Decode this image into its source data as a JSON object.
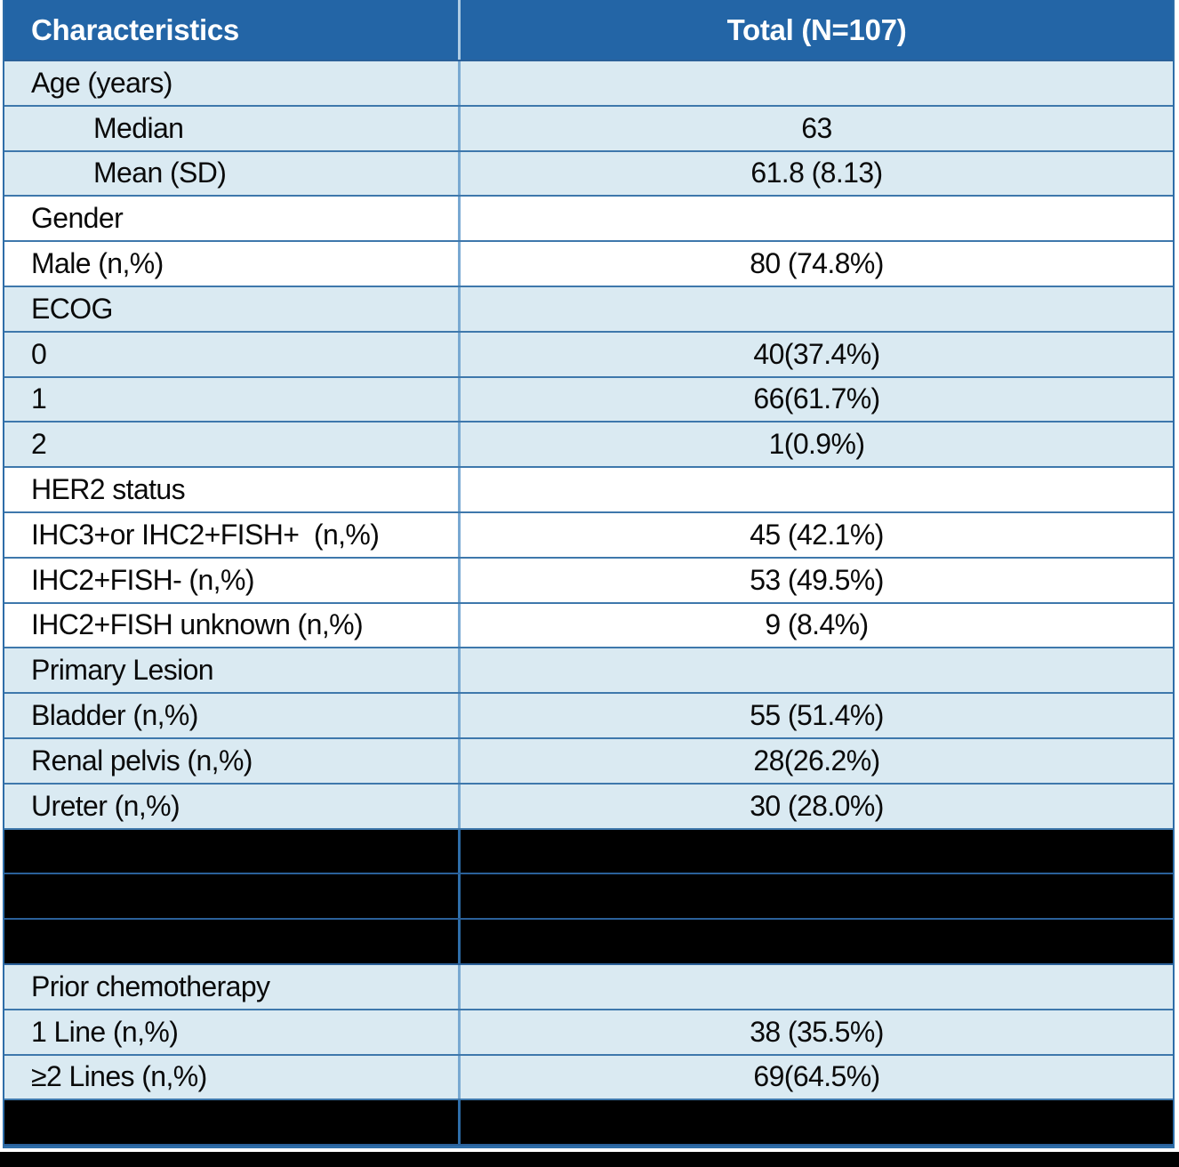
{
  "table": {
    "header": {
      "col1": "Characteristics",
      "col2": "Total (N=107)"
    },
    "rows": [
      {
        "label": "Age (years)",
        "value": "",
        "style": "light",
        "indent": false
      },
      {
        "label": "Median",
        "value": "63",
        "style": "light",
        "indent": true
      },
      {
        "label": "Mean (SD)",
        "value": "61.8 (8.13)",
        "style": "light",
        "indent": true
      },
      {
        "label": "Gender",
        "value": "",
        "style": "white",
        "indent": false
      },
      {
        "label": "Male (n,%)",
        "value": "80 (74.8%)",
        "style": "white",
        "indent": false
      },
      {
        "label": "ECOG",
        "value": "",
        "style": "light",
        "indent": false
      },
      {
        "label": "0",
        "value": "40(37.4%)",
        "style": "light",
        "indent": false
      },
      {
        "label": "1",
        "value": "66(61.7%)",
        "style": "light",
        "indent": false
      },
      {
        "label": "2",
        "value": "1(0.9%)",
        "style": "light",
        "indent": false
      },
      {
        "label": "HER2 status",
        "value": "",
        "style": "white",
        "indent": false
      },
      {
        "label": "IHC3+or IHC2+FISH+  (n,%)",
        "value": "45 (42.1%)",
        "style": "white",
        "indent": false
      },
      {
        "label": "IHC2+FISH- (n,%)",
        "value": "53 (49.5%)",
        "style": "white",
        "indent": false
      },
      {
        "label": "IHC2+FISH unknown (n,%)",
        "value": "9 (8.4%)",
        "style": "white",
        "indent": false
      },
      {
        "label": "Primary Lesion",
        "value": "",
        "style": "light",
        "indent": false
      },
      {
        "label": "Bladder (n,%)",
        "value": "55 (51.4%)",
        "style": "light",
        "indent": false
      },
      {
        "label": "Renal pelvis (n,%)",
        "value": "28(26.2%)",
        "style": "light",
        "indent": false
      },
      {
        "label": "Ureter (n,%)",
        "value": "30 (28.0%)",
        "style": "light",
        "indent": false
      },
      {
        "label": "",
        "value": "",
        "style": "redacted",
        "indent": false
      },
      {
        "label": "",
        "value": "",
        "style": "redacted",
        "indent": false
      },
      {
        "label": "",
        "value": "",
        "style": "redacted",
        "indent": false
      },
      {
        "label": "Prior chemotherapy",
        "value": "",
        "style": "light",
        "indent": false
      },
      {
        "label": "1 Line (n,%)",
        "value": "38 (35.5%)",
        "style": "light",
        "indent": false
      },
      {
        "label": "≥2 Lines (n,%)",
        "value": "69(64.5%)",
        "style": "light",
        "indent": false
      },
      {
        "label": "",
        "value": "",
        "style": "redacted",
        "indent": false
      }
    ]
  },
  "colors": {
    "header_bg": "#2365A6",
    "header_text": "#FFFFFF",
    "row_light_bg": "#DAEAF2",
    "row_white_bg": "#FFFFFF",
    "redacted_bg": "#000000",
    "grid_line": "#3E78AC",
    "outer_border": "#2E6DA8",
    "body_text": "#0A0A0A"
  }
}
